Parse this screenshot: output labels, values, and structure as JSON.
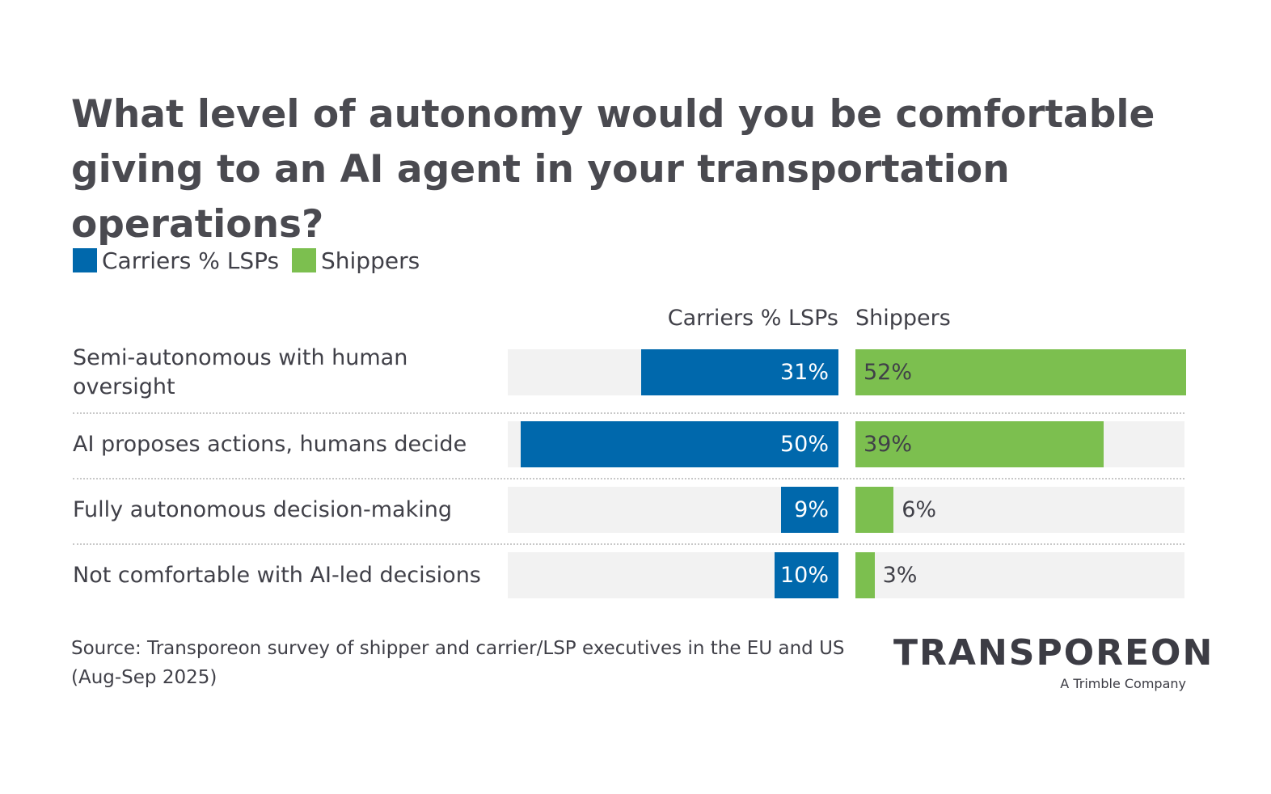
{
  "chart_data": {
    "type": "butterfly-bar",
    "title": "What level of autonomy would you be comfortable giving to an AI agent in your transportation operations?",
    "categories": [
      "Semi-autonomous with human oversight",
      "AI proposes actions, humans decide",
      "Fully autonomous decision-making",
      "Not comfortable with AI-led decisions"
    ],
    "series": [
      {
        "name": "Carriers % LSPs",
        "color": "#0068ac",
        "values": [
          31,
          50,
          9,
          10
        ],
        "value_labels": [
          "31%",
          "50%",
          "9%",
          "10%"
        ]
      },
      {
        "name": "Shippers",
        "color": "#7cbf4f",
        "values": [
          52,
          39,
          6,
          3
        ],
        "value_labels": [
          "52%",
          "39%",
          "6%",
          "3%"
        ]
      }
    ],
    "xlim": [
      0,
      52
    ],
    "source": "Source: Transporeon survey of shipper and carrier/LSP executives in the EU and US (Aug-Sep 2025)",
    "logo": "TRANSPOREON",
    "logo_tagline": "A Trimble Company"
  }
}
